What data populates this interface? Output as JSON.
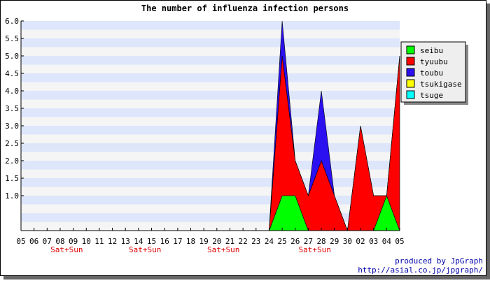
{
  "chart_data": {
    "type": "area",
    "stacked": true,
    "title": "The number of influenza infection persons",
    "xlabel": "",
    "ylabel": "",
    "categories": [
      "05",
      "06",
      "07",
      "08",
      "09",
      "10",
      "11",
      "12",
      "13",
      "14",
      "15",
      "16",
      "17",
      "18",
      "19",
      "20",
      "21",
      "22",
      "23",
      "24",
      "25",
      "26",
      "27",
      "28",
      "29",
      "30",
      "02",
      "03",
      "04",
      "05"
    ],
    "weekend_marks": [
      {
        "index": 3,
        "label": "Sat+Sun"
      },
      {
        "index": 9,
        "label": "Sat+Sun"
      },
      {
        "index": 15,
        "label": "Sat+Sun"
      },
      {
        "index": 22,
        "label": "Sat+Sun"
      }
    ],
    "ylim": [
      0,
      6.0
    ],
    "yticks": [
      "6.0",
      "5.5",
      "5.0",
      "4.5",
      "4.0",
      "3.5",
      "3.0",
      "2.5",
      "2.0",
      "1.5",
      "1.0"
    ],
    "grid": "horizontal bands",
    "legend_position": "right",
    "series": [
      {
        "name": "seibu",
        "color": "#00ff00",
        "values": [
          0,
          0,
          0,
          0,
          0,
          0,
          0,
          0,
          0,
          0,
          0,
          0,
          0,
          0,
          0,
          0,
          0,
          0,
          0,
          0,
          1,
          1,
          0,
          0,
          0,
          0,
          0,
          0,
          1,
          0
        ]
      },
      {
        "name": "tyuubu",
        "color": "#ff0000",
        "values": [
          0,
          0,
          0,
          0,
          0,
          0,
          0,
          0,
          0,
          0,
          0,
          0,
          0,
          0,
          0,
          0,
          0,
          0,
          0,
          0,
          4,
          1,
          1,
          2,
          1,
          0,
          3,
          1,
          0,
          5
        ]
      },
      {
        "name": "toubu",
        "color": "#2b10f0",
        "values": [
          0,
          0,
          0,
          0,
          0,
          0,
          0,
          0,
          0,
          0,
          0,
          0,
          0,
          0,
          0,
          0,
          0,
          0,
          0,
          0,
          1,
          0,
          0,
          2,
          0,
          0,
          0,
          0,
          0,
          0
        ]
      },
      {
        "name": "tsukigase",
        "color": "#ffff00",
        "values": [
          0,
          0,
          0,
          0,
          0,
          0,
          0,
          0,
          0,
          0,
          0,
          0,
          0,
          0,
          0,
          0,
          0,
          0,
          0,
          0,
          0,
          0,
          0,
          0,
          0,
          0,
          0,
          0,
          0,
          0
        ]
      },
      {
        "name": "tsuge",
        "color": "#00ffff",
        "values": [
          0,
          0,
          0,
          0,
          0,
          0,
          0,
          0,
          0,
          0,
          0,
          0,
          0,
          0,
          0,
          0,
          0,
          0,
          0,
          0,
          0,
          0,
          0,
          0,
          0,
          0,
          0,
          0,
          0,
          0
        ]
      }
    ]
  },
  "credits": {
    "line1": "produced by JpGraph",
    "line2": "http://asial.co.jp/jpgraph/"
  },
  "colors": {
    "band_light": "#f5f5f5",
    "band_blue": "#dde6fb",
    "weekend_label": "#dd0000",
    "credit_text": "#0000aa"
  }
}
